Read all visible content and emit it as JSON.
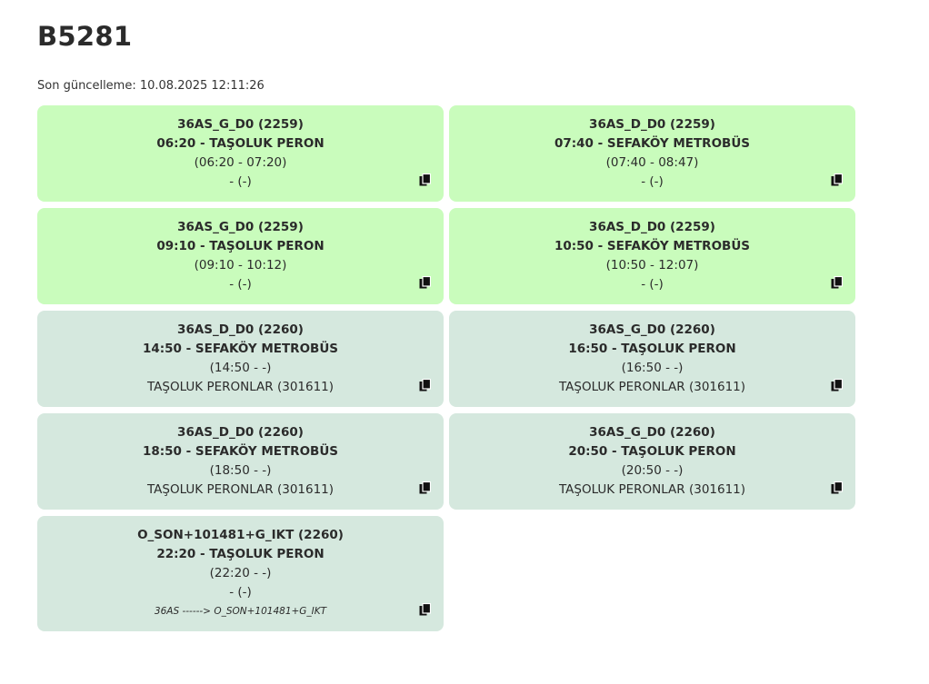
{
  "page": {
    "title": "B5281",
    "last_updated": "Son güncelleme: 10.08.2025 12:11:26"
  },
  "colors": {
    "active_card": "#c9fcbc",
    "planned_card": "#d5e8de"
  },
  "cards": [
    {
      "line1": "36AS_G_D0 (2259)",
      "line2": "06:20 - TAŞOLUK PERON",
      "line3": "(06:20 - 07:20)",
      "line4": "- (-)",
      "icon": "copy-icon"
    },
    {
      "line1": "36AS_D_D0 (2259)",
      "line2": "07:40 - SEFAKÖY METROBÜS",
      "line3": "(07:40 - 08:47)",
      "line4": "- (-)",
      "icon": "copy-icon"
    },
    {
      "line1": "36AS_G_D0 (2259)",
      "line2": "09:10 - TAŞOLUK PERON",
      "line3": "(09:10 - 10:12)",
      "line4": "- (-)",
      "icon": "copy-icon"
    },
    {
      "line1": "36AS_D_D0 (2259)",
      "line2": "10:50 - SEFAKÖY METROBÜS",
      "line3": "(10:50 - 12:07)",
      "line4": "- (-)",
      "icon": "copy-icon"
    },
    {
      "line1": "36AS_D_D0 (2260)",
      "line2": "14:50 - SEFAKÖY METROBÜS",
      "line3": "(14:50 - -)",
      "line4": "TAŞOLUK PERONLAR (301611)",
      "icon": "copy-icon"
    },
    {
      "line1": "36AS_G_D0 (2260)",
      "line2": "16:50 - TAŞOLUK PERON",
      "line3": "(16:50 - -)",
      "line4": "TAŞOLUK PERONLAR (301611)",
      "icon": "copy-icon"
    },
    {
      "line1": "36AS_D_D0 (2260)",
      "line2": "18:50 - SEFAKÖY METROBÜS",
      "line3": "(18:50 - -)",
      "line4": "TAŞOLUK PERONLAR (301611)",
      "icon": "copy-icon"
    },
    {
      "line1": "36AS_G_D0 (2260)",
      "line2": "20:50 - TAŞOLUK PERON",
      "line3": "(20:50 - -)",
      "line4": "TAŞOLUK PERONLAR (301611)",
      "icon": "copy-icon"
    },
    {
      "line1": "O_SON+101481+G_IKT (2260)",
      "line2": "22:20 - TAŞOLUK PERON",
      "line3": "(22:20 - -)",
      "line4": "- (-)",
      "note": "36AS ------> O_SON+101481+G_IKT",
      "icon": "copy-icon"
    }
  ]
}
